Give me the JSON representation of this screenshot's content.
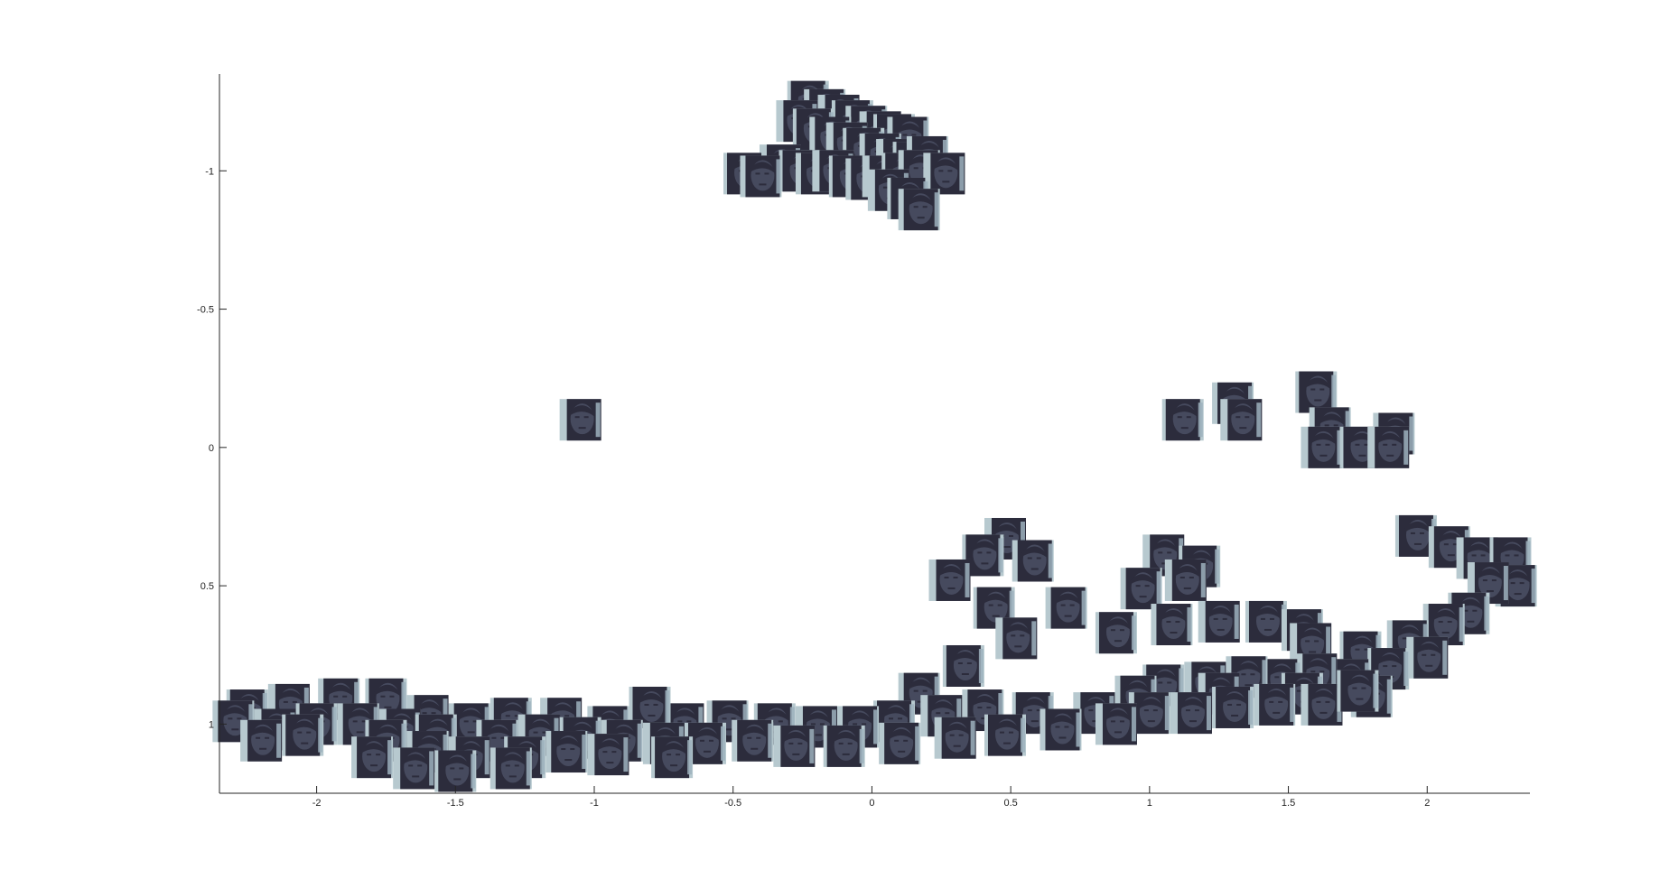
{
  "chart_data": {
    "type": "scatter",
    "marker": "face-image-thumbnail",
    "title": "",
    "xlabel": "",
    "ylabel": "",
    "xlim": [
      -2.35,
      2.37
    ],
    "ylim": [
      -1.35,
      1.25
    ],
    "y_reversed": true,
    "grid": false,
    "legend": "none",
    "x_ticks": [
      {
        "value": -2,
        "label": "-2"
      },
      {
        "value": -1.5,
        "label": "-1.5"
      },
      {
        "value": -1,
        "label": "-1"
      },
      {
        "value": -0.5,
        "label": "-0.5"
      },
      {
        "value": 0,
        "label": "0"
      },
      {
        "value": 0.5,
        "label": "0.5"
      },
      {
        "value": 1,
        "label": "1"
      },
      {
        "value": 1.5,
        "label": "1.5"
      },
      {
        "value": 2,
        "label": "2"
      }
    ],
    "y_ticks": [
      {
        "value": -1,
        "label": "-1"
      },
      {
        "value": -0.5,
        "label": "-0.5"
      },
      {
        "value": 0,
        "label": "0"
      },
      {
        "value": 0.5,
        "label": "0.5"
      },
      {
        "value": 1,
        "label": "1"
      }
    ],
    "colors": {
      "face_dark": "#2c2c3c",
      "face_mid": "#464a5e",
      "face_light": "#9db2bd",
      "background_light": "#b7c9cf",
      "axis": "#262626"
    },
    "points": [
      {
        "x": -0.23,
        "y": -1.25
      },
      {
        "x": -0.17,
        "y": -1.22
      },
      {
        "x": -0.12,
        "y": -1.2
      },
      {
        "x": -0.07,
        "y": -1.18
      },
      {
        "x": -0.02,
        "y": -1.16
      },
      {
        "x": 0.03,
        "y": -1.14
      },
      {
        "x": 0.08,
        "y": -1.13
      },
      {
        "x": 0.13,
        "y": -1.12
      },
      {
        "x": -0.27,
        "y": -1.18
      },
      {
        "x": -0.21,
        "y": -1.15
      },
      {
        "x": -0.15,
        "y": -1.12
      },
      {
        "x": -0.09,
        "y": -1.1
      },
      {
        "x": -0.03,
        "y": -1.08
      },
      {
        "x": 0.03,
        "y": -1.06
      },
      {
        "x": 0.09,
        "y": -1.04
      },
      {
        "x": 0.15,
        "y": -1.03
      },
      {
        "x": 0.2,
        "y": -1.05
      },
      {
        "x": -0.33,
        "y": -1.02
      },
      {
        "x": -0.26,
        "y": -1.0
      },
      {
        "x": -0.2,
        "y": -0.99
      },
      {
        "x": -0.14,
        "y": -1.0
      },
      {
        "x": -0.08,
        "y": -0.98
      },
      {
        "x": -0.02,
        "y": -0.97
      },
      {
        "x": 0.04,
        "y": -0.98
      },
      {
        "x": 0.11,
        "y": -0.99
      },
      {
        "x": 0.17,
        "y": -1.0
      },
      {
        "x": 0.26,
        "y": -0.99
      },
      {
        "x": -0.46,
        "y": -0.99
      },
      {
        "x": -0.4,
        "y": -0.98
      },
      {
        "x": 0.06,
        "y": -0.93
      },
      {
        "x": 0.13,
        "y": -0.9
      },
      {
        "x": 0.17,
        "y": -0.86
      },
      {
        "x": -1.05,
        "y": -0.1
      },
      {
        "x": 1.12,
        "y": -0.1
      },
      {
        "x": 1.3,
        "y": -0.16
      },
      {
        "x": 1.33,
        "y": -0.1
      },
      {
        "x": 1.6,
        "y": -0.2
      },
      {
        "x": 1.65,
        "y": -0.07
      },
      {
        "x": 1.62,
        "y": -0.0
      },
      {
        "x": 1.76,
        "y": -0.0
      },
      {
        "x": 1.88,
        "y": -0.05
      },
      {
        "x": 1.86,
        "y": 0.0
      },
      {
        "x": 1.96,
        "y": 0.32
      },
      {
        "x": 2.08,
        "y": 0.36
      },
      {
        "x": 2.18,
        "y": 0.4
      },
      {
        "x": 2.3,
        "y": 0.4
      },
      {
        "x": 2.32,
        "y": 0.5
      },
      {
        "x": 2.22,
        "y": 0.49
      },
      {
        "x": 2.15,
        "y": 0.6
      },
      {
        "x": 2.06,
        "y": 0.64
      },
      {
        "x": 0.48,
        "y": 0.33
      },
      {
        "x": 0.4,
        "y": 0.39
      },
      {
        "x": 0.58,
        "y": 0.41
      },
      {
        "x": 0.28,
        "y": 0.48
      },
      {
        "x": 0.44,
        "y": 0.58
      },
      {
        "x": 0.7,
        "y": 0.58
      },
      {
        "x": 0.52,
        "y": 0.69
      },
      {
        "x": 0.33,
        "y": 0.79
      },
      {
        "x": 0.17,
        "y": 0.89
      },
      {
        "x": 1.05,
        "y": 0.39
      },
      {
        "x": 1.18,
        "y": 0.43
      },
      {
        "x": 0.97,
        "y": 0.51
      },
      {
        "x": 1.13,
        "y": 0.48
      },
      {
        "x": 0.88,
        "y": 0.67
      },
      {
        "x": 1.08,
        "y": 0.64
      },
      {
        "x": 1.25,
        "y": 0.63
      },
      {
        "x": 1.42,
        "y": 0.63
      },
      {
        "x": 1.55,
        "y": 0.66
      },
      {
        "x": 1.58,
        "y": 0.71
      },
      {
        "x": 1.76,
        "y": 0.74
      },
      {
        "x": 1.93,
        "y": 0.7
      },
      {
        "x": 2.0,
        "y": 0.76
      },
      {
        "x": 1.86,
        "y": 0.8
      },
      {
        "x": 1.72,
        "y": 0.84
      },
      {
        "x": 1.6,
        "y": 0.82
      },
      {
        "x": 1.47,
        "y": 0.84
      },
      {
        "x": 1.35,
        "y": 0.83
      },
      {
        "x": 1.2,
        "y": 0.85
      },
      {
        "x": 1.05,
        "y": 0.86
      },
      {
        "x": 0.95,
        "y": 0.9
      },
      {
        "x": 1.25,
        "y": 0.89
      },
      {
        "x": 1.55,
        "y": 0.89
      },
      {
        "x": 1.8,
        "y": 0.9
      },
      {
        "x": 1.15,
        "y": 0.96
      },
      {
        "x": 1.3,
        "y": 0.94
      },
      {
        "x": 1.45,
        "y": 0.93
      },
      {
        "x": 1.62,
        "y": 0.93
      },
      {
        "x": 1.75,
        "y": 0.88
      },
      {
        "x": 1.0,
        "y": 0.96
      },
      {
        "x": 0.8,
        "y": 0.96
      },
      {
        "x": 0.58,
        "y": 0.96
      },
      {
        "x": 0.4,
        "y": 0.95
      },
      {
        "x": 0.25,
        "y": 0.97
      },
      {
        "x": 0.08,
        "y": 0.99
      },
      {
        "x": -0.05,
        "y": 1.01
      },
      {
        "x": -0.2,
        "y": 1.01
      },
      {
        "x": -0.35,
        "y": 1.0
      },
      {
        "x": -0.52,
        "y": 0.99
      },
      {
        "x": -0.68,
        "y": 1.0
      },
      {
        "x": -0.8,
        "y": 0.94
      },
      {
        "x": -0.95,
        "y": 1.01
      },
      {
        "x": -1.12,
        "y": 0.98
      },
      {
        "x": -1.3,
        "y": 0.98
      },
      {
        "x": -1.45,
        "y": 1.0
      },
      {
        "x": -1.6,
        "y": 0.97
      },
      {
        "x": -1.75,
        "y": 0.91
      },
      {
        "x": -1.92,
        "y": 0.91
      },
      {
        "x": -2.1,
        "y": 0.93
      },
      {
        "x": -2.25,
        "y": 0.95
      },
      {
        "x": -2.3,
        "y": 0.99
      },
      {
        "x": -2.15,
        "y": 1.02
      },
      {
        "x": -2.0,
        "y": 1.0
      },
      {
        "x": -1.85,
        "y": 1.0
      },
      {
        "x": -1.7,
        "y": 1.02
      },
      {
        "x": -1.57,
        "y": 1.04
      },
      {
        "x": -1.35,
        "y": 1.06
      },
      {
        "x": -1.2,
        "y": 1.04
      },
      {
        "x": -1.05,
        "y": 1.05
      },
      {
        "x": -0.9,
        "y": 1.06
      },
      {
        "x": -0.75,
        "y": 1.07
      },
      {
        "x": -0.6,
        "y": 1.07
      },
      {
        "x": -0.43,
        "y": 1.06
      },
      {
        "x": -0.28,
        "y": 1.08
      },
      {
        "x": -0.1,
        "y": 1.08
      },
      {
        "x": 0.1,
        "y": 1.07
      },
      {
        "x": 0.3,
        "y": 1.05
      },
      {
        "x": 0.48,
        "y": 1.04
      },
      {
        "x": 0.68,
        "y": 1.02
      },
      {
        "x": 0.88,
        "y": 1.0
      },
      {
        "x": -1.75,
        "y": 1.06
      },
      {
        "x": -1.6,
        "y": 1.1
      },
      {
        "x": -1.45,
        "y": 1.12
      },
      {
        "x": -1.25,
        "y": 1.12
      },
      {
        "x": -1.1,
        "y": 1.1
      },
      {
        "x": -0.95,
        "y": 1.11
      },
      {
        "x": -0.72,
        "y": 1.12
      },
      {
        "x": -1.8,
        "y": 1.12
      },
      {
        "x": -1.65,
        "y": 1.16
      },
      {
        "x": -1.5,
        "y": 1.17
      },
      {
        "x": -1.3,
        "y": 1.16
      },
      {
        "x": -2.2,
        "y": 1.06
      },
      {
        "x": -2.05,
        "y": 1.04
      }
    ]
  }
}
